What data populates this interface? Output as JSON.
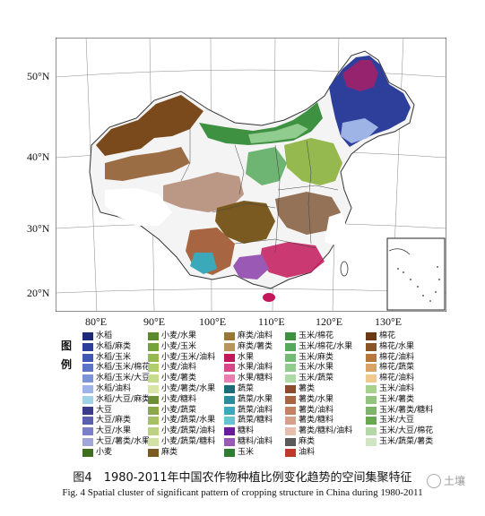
{
  "map": {
    "lat_labels": [
      "50°N",
      "40°N",
      "30°N",
      "20°N"
    ],
    "lon_labels": [
      "80°E",
      "90°E",
      "100°E",
      "110°E",
      "120°E",
      "130°E"
    ]
  },
  "legend": {
    "title_chars": [
      "图",
      "例"
    ],
    "items": [
      {
        "label": "水稻",
        "color": "#1c2a78"
      },
      {
        "label": "水稻/麻类",
        "color": "#2d3f9a"
      },
      {
        "label": "水稻/玉米",
        "color": "#4157b5"
      },
      {
        "label": "水稻/玉米/棉花",
        "color": "#5c74c8"
      },
      {
        "label": "水稻/玉米/大豆",
        "color": "#7d95d8"
      },
      {
        "label": "水稻/油料",
        "color": "#9fb4e6"
      },
      {
        "label": "水稻/大豆/麻类",
        "color": "#9fd3e8"
      },
      {
        "label": "大豆",
        "color": "#3c3c8c"
      },
      {
        "label": "大豆/麻类",
        "color": "#5b5fb0"
      },
      {
        "label": "大豆/水果",
        "color": "#7a80c8"
      },
      {
        "label": "大豆/薯类/水果",
        "color": "#a0a6da"
      },
      {
        "label": "小麦",
        "color": "#3f6e1e"
      },
      {
        "label": "小麦/水果",
        "color": "#5a8a2b"
      },
      {
        "label": "小麦/玉米",
        "color": "#76a23a"
      },
      {
        "label": "小麦/玉米/油料",
        "color": "#95b94f"
      },
      {
        "label": "小麦/油料",
        "color": "#b0cd6b"
      },
      {
        "label": "小麦/薯类",
        "color": "#c6dc8c"
      },
      {
        "label": "小麦/薯类/水果",
        "color": "#d7e6a8"
      },
      {
        "label": "小麦/糖料",
        "color": "#6e8f3a"
      },
      {
        "label": "小麦/蔬菜",
        "color": "#8aa84a"
      },
      {
        "label": "小麦/蔬菜/水果",
        "color": "#a6c064"
      },
      {
        "label": "小麦/蔬菜/油料",
        "color": "#bcd184"
      },
      {
        "label": "小麦/蔬菜/糖料",
        "color": "#d2e2a6"
      },
      {
        "label": "麻类",
        "color": "#7a5a20"
      },
      {
        "label": "麻类/油料",
        "color": "#9a7634"
      },
      {
        "label": "麻类/薯类",
        "color": "#b8955a"
      },
      {
        "label": "水果",
        "color": "#c2185b"
      },
      {
        "label": "水果/油料",
        "color": "#d9478a"
      },
      {
        "label": "水果/糖料",
        "color": "#e97fb1"
      },
      {
        "label": "蔬菜",
        "color": "#1b6b78"
      },
      {
        "label": "蔬菜/水果",
        "color": "#2a8c9c"
      },
      {
        "label": "蔬菜/油料",
        "color": "#3ba9b9"
      },
      {
        "label": "蔬菜/糖料",
        "color": "#66c3d0"
      },
      {
        "label": "糖料",
        "color": "#6a1b9a"
      },
      {
        "label": "糖料/油料",
        "color": "#9b59b6"
      },
      {
        "label": "玉米",
        "color": "#2e7d32"
      },
      {
        "label": "玉米/棉花",
        "color": "#3f9142"
      },
      {
        "label": "玉米/棉花/水果",
        "color": "#56a85a"
      },
      {
        "label": "玉米/麻类",
        "color": "#72bb73"
      },
      {
        "label": "玉米/水果",
        "color": "#8fcc8d"
      },
      {
        "label": "玉米/蔬菜",
        "color": "#acdba8"
      },
      {
        "label": "薯类",
        "color": "#8d4a2c"
      },
      {
        "label": "薯类/水果",
        "color": "#a86542"
      },
      {
        "label": "薯类/油料",
        "color": "#c28264"
      },
      {
        "label": "薯类/糖料",
        "color": "#d6a08a"
      },
      {
        "label": "薯类/糖料/油料",
        "color": "#e6bfae"
      },
      {
        "label": "麻类",
        "color": "#5a5a5a"
      },
      {
        "label": "油料",
        "color": "#c03a2b"
      },
      {
        "label": "棉花",
        "color": "#6b3a14"
      },
      {
        "label": "棉花/水果",
        "color": "#8a5526"
      },
      {
        "label": "棉花/油料",
        "color": "#b8763a"
      },
      {
        "label": "棉花/蔬菜",
        "color": "#d9a463"
      },
      {
        "label": "棉花/油料",
        "color": "#f0c98f"
      },
      {
        "label": "玉米/油料",
        "color": "#a9d18e"
      },
      {
        "label": "玉米/薯类",
        "color": "#93c47d"
      },
      {
        "label": "玉米/薯类/糖料",
        "color": "#7fb56a"
      },
      {
        "label": "玉米/大豆",
        "color": "#6aa84f"
      },
      {
        "label": "玉米/大豆/棉花",
        "color": "#b6d7a8"
      },
      {
        "label": "玉米/蔬菜/薯类",
        "color": "#d0e5c4"
      }
    ]
  },
  "caption": {
    "cn": "图4　1980-2011年中国农作物种植比例变化趋势的空间集聚特征",
    "en": "Fig. 4   Spatial cluster of significant pattern of cropping structure in China during 1980-2011"
  },
  "watermark": {
    "text": "土壤"
  }
}
